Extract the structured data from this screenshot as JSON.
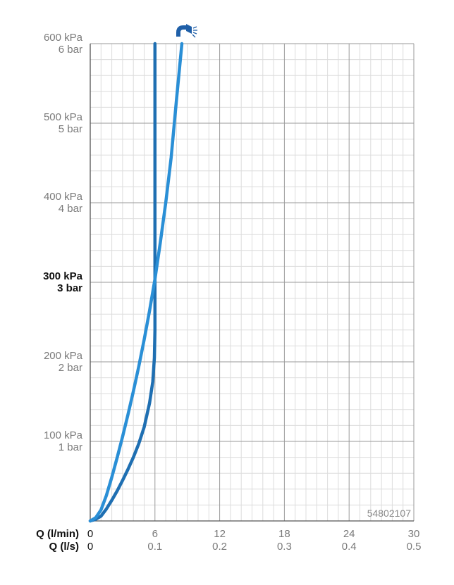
{
  "chart_data": {
    "type": "line",
    "x_axes": [
      {
        "name": "Q (l/min)",
        "ticks": [
          "0",
          "6",
          "12",
          "18",
          "24",
          "30"
        ]
      },
      {
        "name": "Q (l/s)",
        "ticks": [
          "0",
          "0.1",
          "0.2",
          "0.3",
          "0.4",
          "0.5"
        ]
      }
    ],
    "xlim": [
      0,
      30
    ],
    "ylim": [
      0,
      600
    ],
    "y_ticks": [
      {
        "value": 600,
        "kpa": "600 kPa",
        "bar": "6 bar",
        "bold": false
      },
      {
        "value": 500,
        "kpa": "500 kPa",
        "bar": "5 bar",
        "bold": false
      },
      {
        "value": 400,
        "kpa": "400 kPa",
        "bar": "4 bar",
        "bold": false
      },
      {
        "value": 300,
        "kpa": "300 kPa",
        "bar": "3 bar",
        "bold": true
      },
      {
        "value": 200,
        "kpa": "200 kPa",
        "bar": "2 bar",
        "bold": false
      },
      {
        "value": 100,
        "kpa": "100 kPa",
        "bar": "1 bar",
        "bold": false
      }
    ],
    "grid": true,
    "series": [
      {
        "color": "#1f6fb2",
        "points": [
          [
            0,
            0
          ],
          [
            0.5,
            2
          ],
          [
            1.0,
            6
          ],
          [
            1.5,
            15
          ],
          [
            2.0,
            26
          ],
          [
            2.5,
            38
          ],
          [
            3.0,
            51
          ],
          [
            3.5,
            65
          ],
          [
            4.0,
            80
          ],
          [
            4.5,
            97
          ],
          [
            5.0,
            118
          ],
          [
            5.5,
            148
          ],
          [
            5.8,
            175
          ],
          [
            5.95,
            205
          ],
          [
            6.0,
            240
          ],
          [
            6.0,
            300
          ],
          [
            6.0,
            450
          ],
          [
            6.0,
            600
          ]
        ]
      },
      {
        "color": "#2a8fd6",
        "points": [
          [
            0,
            0
          ],
          [
            0.5,
            4
          ],
          [
            1.0,
            14
          ],
          [
            1.5,
            32
          ],
          [
            2.0,
            55
          ],
          [
            2.5,
            80
          ],
          [
            3.0,
            106
          ],
          [
            3.5,
            134
          ],
          [
            4.0,
            163
          ],
          [
            4.5,
            194
          ],
          [
            5.0,
            228
          ],
          [
            5.5,
            264
          ],
          [
            6.0,
            304
          ],
          [
            6.5,
            350
          ],
          [
            7.0,
            400
          ],
          [
            7.5,
            457
          ],
          [
            8.0,
            530
          ],
          [
            8.5,
            600
          ]
        ]
      }
    ],
    "annotation": "54802107",
    "icon": "shower-head-icon",
    "colors": {
      "grid_major": "#9a9a9a",
      "grid_minor": "#dcdcdc",
      "axis": "#555555"
    }
  }
}
